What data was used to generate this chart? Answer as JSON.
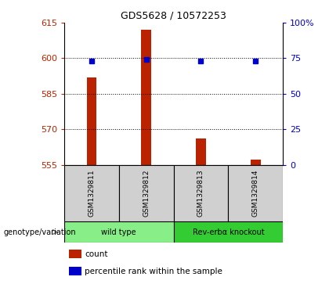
{
  "title": "GDS5628 / 10572253",
  "samples": [
    "GSM1329811",
    "GSM1329812",
    "GSM1329813",
    "GSM1329814"
  ],
  "bar_values": [
    592,
    612,
    566,
    557
  ],
  "percentile_values": [
    73,
    74,
    73,
    73
  ],
  "baseline": 555,
  "ylim_left": [
    555,
    615
  ],
  "ylim_right": [
    0,
    100
  ],
  "left_ticks": [
    555,
    570,
    585,
    600,
    615
  ],
  "right_ticks": [
    0,
    25,
    50,
    75,
    100
  ],
  "bar_color": "#bb2200",
  "percentile_color": "#0000cc",
  "dotted_lines": [
    600,
    585,
    570
  ],
  "groups": [
    {
      "label": "wild type",
      "samples_idx": [
        0,
        1
      ],
      "color": "#88ee88"
    },
    {
      "label": "Rev-erbα knockout",
      "samples_idx": [
        2,
        3
      ],
      "color": "#33cc33"
    }
  ],
  "genotype_label": "genotype/variation",
  "legend_items": [
    {
      "label": "count",
      "color": "#bb2200"
    },
    {
      "label": "percentile rank within the sample",
      "color": "#0000cc"
    }
  ],
  "bar_width": 0.18
}
